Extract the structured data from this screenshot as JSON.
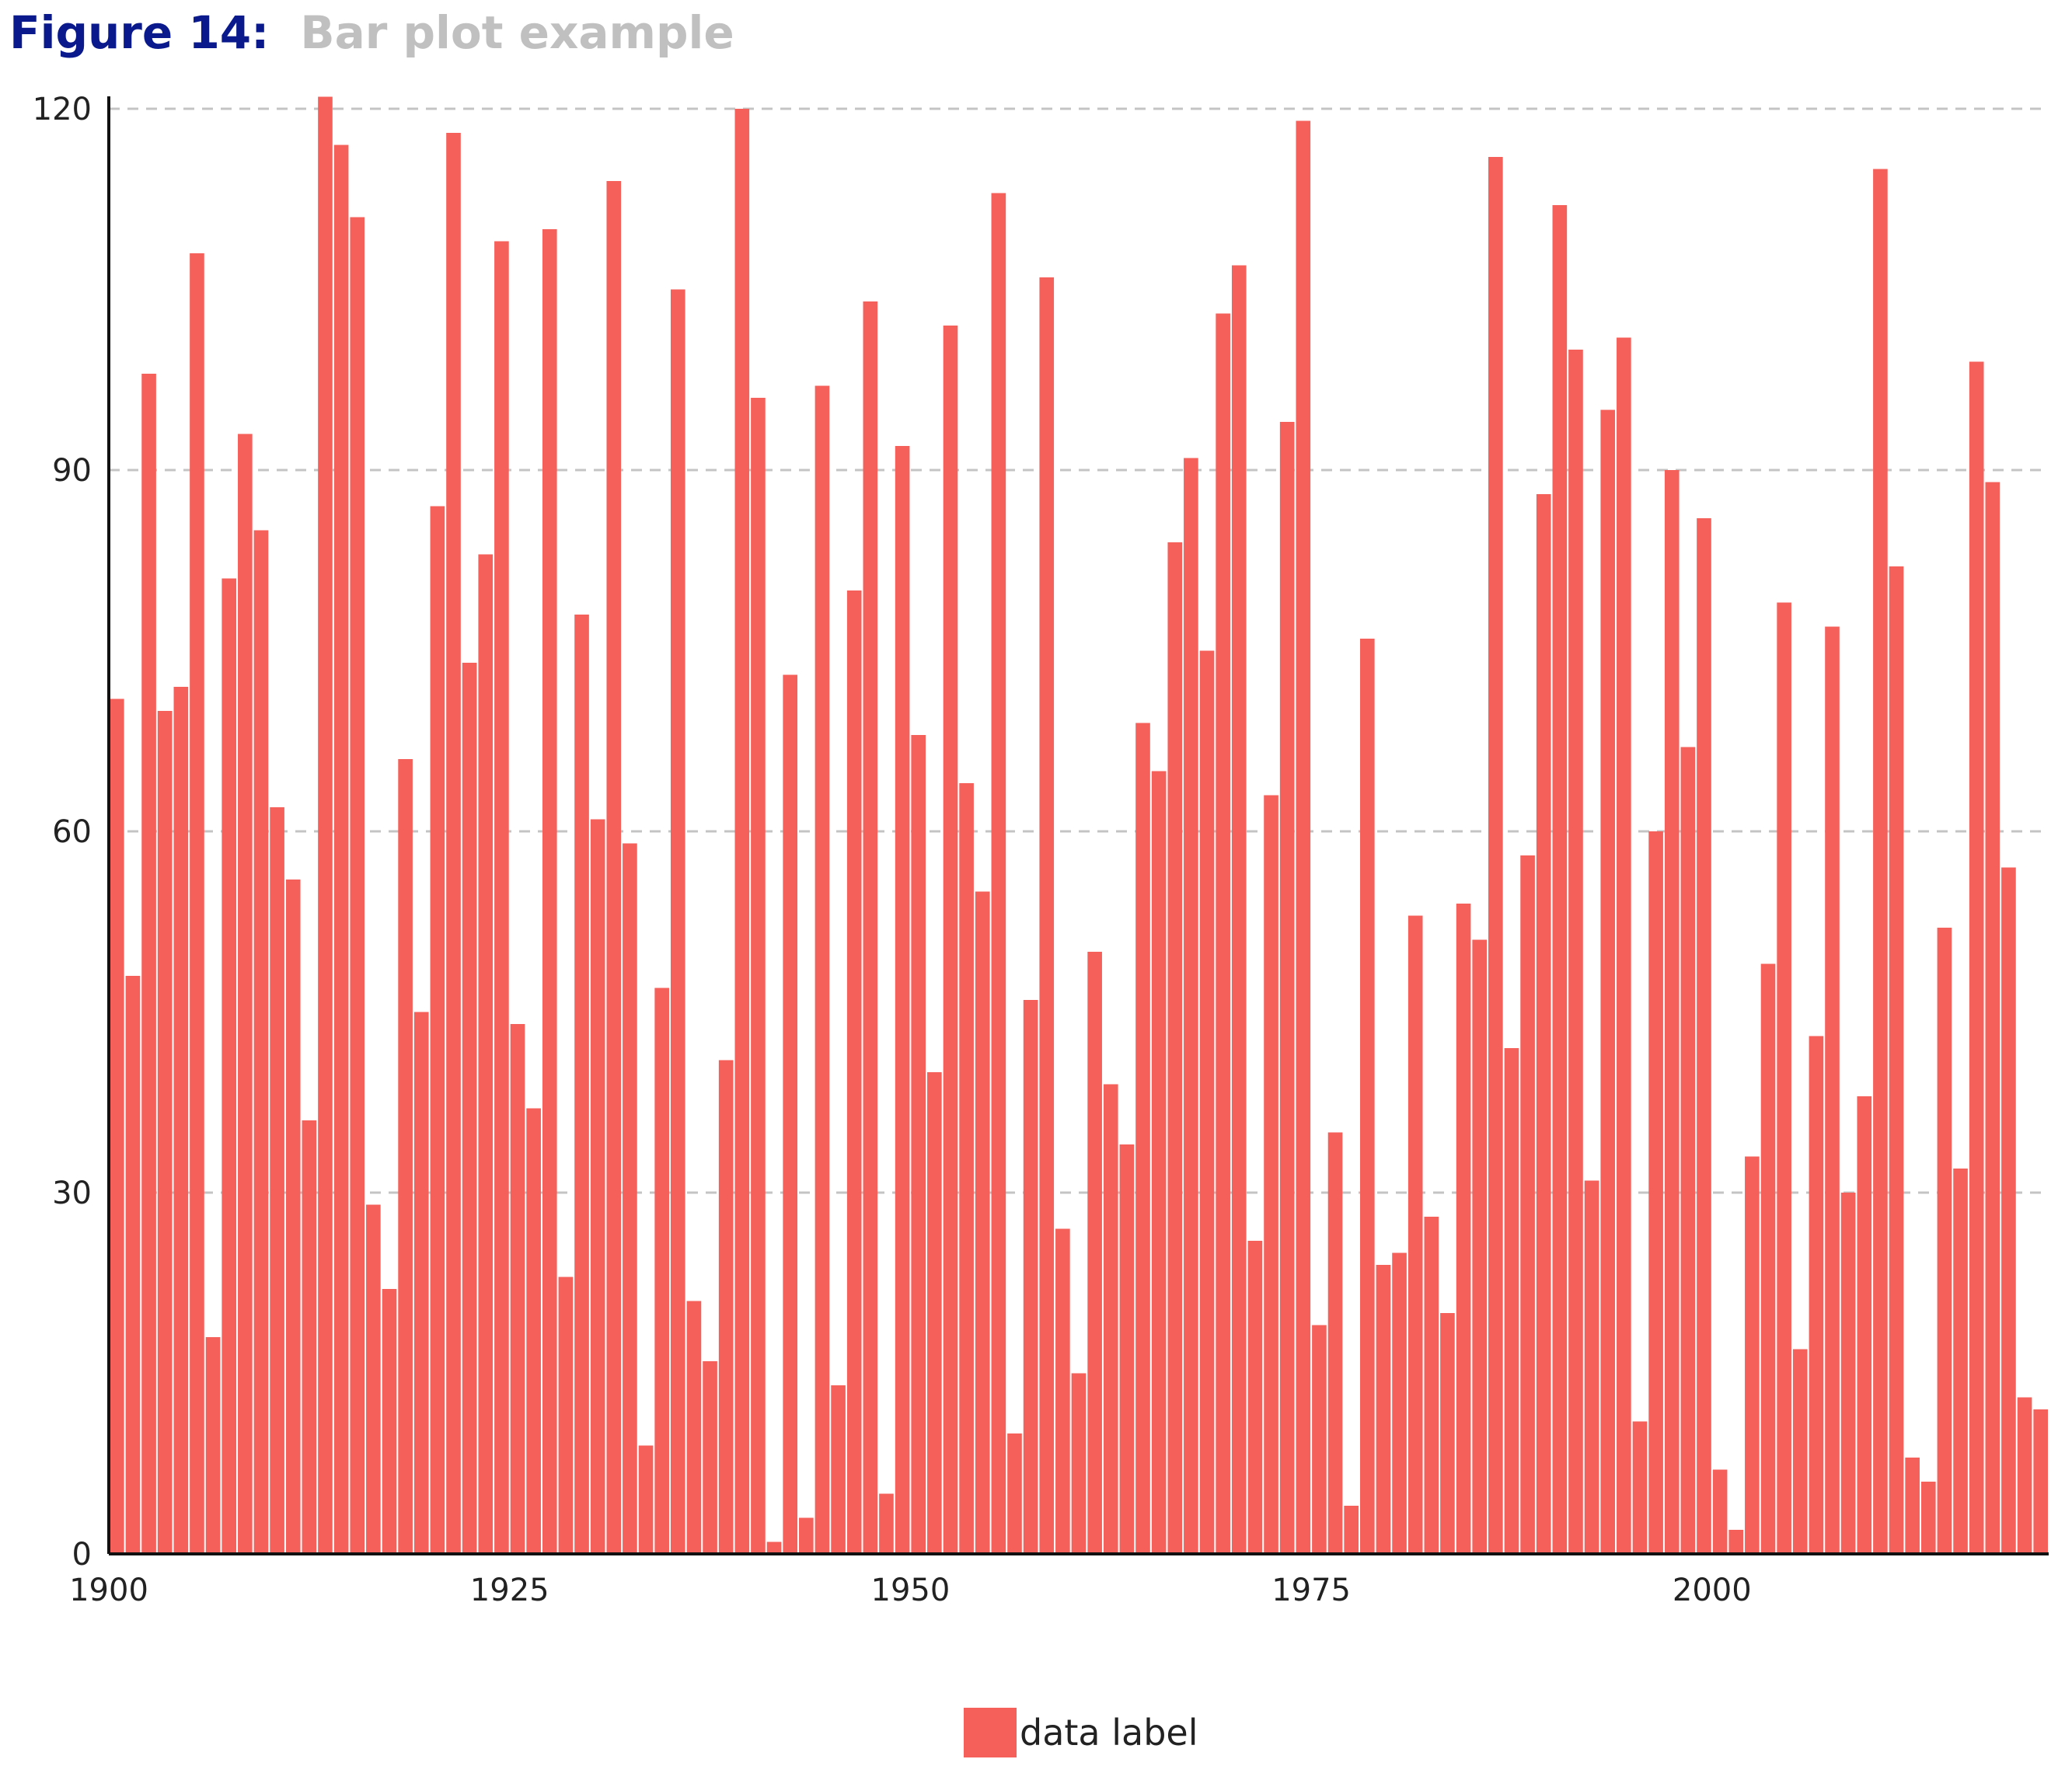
{
  "figure": {
    "label": "Figure 14:",
    "title": "Bar plot example"
  },
  "chart_data": {
    "type": "bar",
    "title": "Bar plot example",
    "xlabel": "",
    "ylabel": "",
    "ylim": [
      0,
      120
    ],
    "yticks": [
      0,
      30,
      60,
      90,
      120
    ],
    "xticks": [
      1900,
      1925,
      1950,
      1975,
      2000
    ],
    "grid": true,
    "legend_position": "bottom-center",
    "color": "#f5605a",
    "series": [
      {
        "name": "data label",
        "x": [
          1900,
          1901,
          1902,
          1903,
          1904,
          1905,
          1906,
          1907,
          1908,
          1909,
          1910,
          1911,
          1912,
          1913,
          1914,
          1915,
          1916,
          1917,
          1918,
          1919,
          1920,
          1921,
          1922,
          1923,
          1924,
          1925,
          1926,
          1927,
          1928,
          1929,
          1930,
          1931,
          1932,
          1933,
          1934,
          1935,
          1936,
          1937,
          1938,
          1939,
          1940,
          1941,
          1942,
          1943,
          1944,
          1945,
          1946,
          1947,
          1948,
          1949,
          1950,
          1951,
          1952,
          1953,
          1954,
          1955,
          1956,
          1957,
          1958,
          1959,
          1960,
          1961,
          1962,
          1963,
          1964,
          1965,
          1966,
          1967,
          1968,
          1969,
          1970,
          1971,
          1972,
          1973,
          1974,
          1975,
          1976,
          1977,
          1978,
          1979,
          1980,
          1981,
          1982,
          1983,
          1984,
          1985,
          1986,
          1987,
          1988,
          1989,
          1990,
          1991,
          1992,
          1993,
          1994,
          1995,
          1996,
          1997,
          1998,
          1999,
          2000,
          2001,
          2002,
          2003,
          2004,
          2005,
          2006,
          2007,
          2008,
          2009,
          2010,
          2011,
          2012,
          2013,
          2014,
          2015,
          2016,
          2017,
          2018,
          2019,
          2020
        ],
        "values": [
          71,
          48,
          98,
          70,
          72,
          108,
          18,
          81,
          93,
          85,
          62,
          56,
          36,
          121,
          117,
          111,
          29,
          22,
          66,
          45,
          87,
          118,
          74,
          83,
          109,
          44,
          37,
          110,
          23,
          78,
          61,
          114,
          59,
          9,
          47,
          105,
          21,
          16,
          41,
          120,
          96,
          1,
          73,
          3,
          97,
          14,
          80,
          104,
          5,
          92,
          68,
          40,
          102,
          64,
          55,
          113,
          10,
          46,
          106,
          27,
          15,
          50,
          39,
          34,
          69,
          65,
          84,
          91,
          75,
          103,
          107,
          26,
          63,
          94,
          119,
          19,
          35,
          4,
          76,
          24,
          25,
          53,
          28,
          20,
          54,
          51,
          116,
          42,
          58,
          88,
          112,
          100,
          31,
          95,
          101,
          11,
          60,
          90,
          67,
          86,
          7,
          2,
          33,
          49,
          79,
          17,
          43,
          77,
          30,
          38,
          115,
          82,
          8,
          6,
          52,
          32,
          99,
          89,
          57,
          13,
          12
        ]
      }
    ]
  }
}
